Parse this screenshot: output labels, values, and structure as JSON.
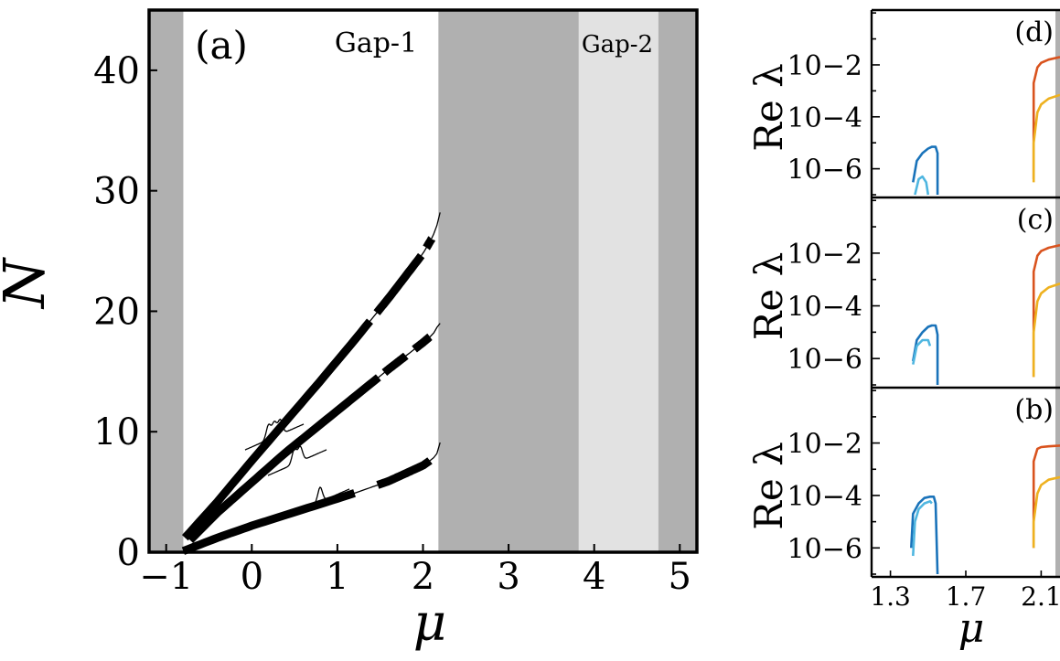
{
  "chart_data": [
    {
      "type": "line",
      "panel_label": "(a)",
      "xlabel": "μ",
      "ylabel": "N",
      "xlim": [
        -1.2,
        5.2
      ],
      "ylim": [
        0,
        45
      ],
      "xticks": [
        -1,
        0,
        1,
        2,
        3,
        4,
        5
      ],
      "xtick_labels": [
        "−1",
        "0",
        "1",
        "2",
        "3",
        "4",
        "5"
      ],
      "yticks": [
        0,
        10,
        20,
        30,
        40
      ],
      "ytick_labels": [
        "0",
        "10",
        "20",
        "30",
        "40"
      ],
      "grid": false,
      "bands": [
        {
          "x0": -1.2,
          "x1": -0.8,
          "color": "#b0b0b0"
        },
        {
          "x0": 2.18,
          "x1": 3.82,
          "color": "#b0b0b0"
        },
        {
          "x0": 3.82,
          "x1": 4.75,
          "color": "#e2e2e2"
        },
        {
          "x0": 4.75,
          "x1": 5.2,
          "color": "#b0b0b0"
        }
      ],
      "annotations": [
        {
          "text": "Gap-1",
          "x": 1.45,
          "y": 41.5
        },
        {
          "text": "Gap-2",
          "x": 4.27,
          "y": 41.5
        }
      ],
      "series": [
        {
          "x": [
            -0.78,
            -0.4,
            0,
            0.4,
            0.8,
            1.2,
            1.6,
            2.0,
            2.1,
            2.15,
            2.19,
            2.2
          ],
          "y": [
            1.2,
            4.2,
            7.6,
            10.9,
            14.2,
            17.6,
            21.1,
            24.8,
            26.0,
            26.8,
            27.8,
            28.2
          ],
          "thick_segments": [
            [
              -0.78,
              1.38
            ],
            [
              1.46,
              1.98
            ],
            [
              2.04,
              2.1
            ]
          ]
        },
        {
          "x": [
            -0.72,
            -0.4,
            0,
            0.4,
            0.8,
            1.2,
            1.6,
            2.0,
            2.1,
            2.15,
            2.19,
            2.2
          ],
          "y": [
            1.0,
            3.3,
            5.8,
            8.3,
            10.6,
            12.9,
            15.2,
            17.4,
            18.0,
            18.4,
            19.2,
            19.0
          ],
          "thick_segments": [
            [
              -0.72,
              1.48
            ],
            [
              1.55,
              1.8
            ],
            [
              1.9,
              2.08
            ]
          ]
        },
        {
          "x": [
            -0.8,
            -0.4,
            0,
            0.4,
            0.8,
            1.2,
            1.6,
            2.0,
            2.1,
            2.15,
            2.19,
            2.2
          ],
          "y": [
            0.1,
            1.2,
            2.2,
            3.1,
            4.0,
            4.9,
            5.9,
            7.2,
            7.7,
            8.0,
            8.6,
            9.1
          ],
          "thick_segments": [
            [
              -0.8,
              1.2
            ],
            [
              1.47,
              2.08
            ]
          ]
        }
      ]
    },
    {
      "type": "line",
      "panel_label": "(d)",
      "ylabel": "Re λ",
      "yscale": "log",
      "ylim": [
        1e-07,
        1
      ],
      "xlim": [
        1.2,
        2.2
      ],
      "ytick_labels": [
        "10−6",
        "10−4",
        "10−2"
      ],
      "series": [
        {
          "color": "#1a73ba",
          "x": [
            1.42,
            1.44,
            1.47,
            1.5,
            1.52,
            1.54,
            1.55,
            1.55
          ],
          "y": [
            3e-07,
            2e-06,
            4e-06,
            6e-06,
            7e-06,
            7e-06,
            4e-06,
            1e-07
          ]
        },
        {
          "color": "#4fb6e0",
          "x": [
            1.43,
            1.45,
            1.47,
            1.49,
            1.5
          ],
          "y": [
            1e-07,
            4e-07,
            5e-07,
            3e-07,
            1e-07
          ]
        },
        {
          "color": "#d9531e",
          "x": [
            2.06,
            2.06,
            2.08,
            2.1,
            2.14,
            2.2
          ],
          "y": [
            4e-07,
            0.002,
            0.008,
            0.012,
            0.016,
            0.02
          ]
        },
        {
          "color": "#eeb11f",
          "x": [
            2.06,
            2.06,
            2.08,
            2.1,
            2.14,
            2.2
          ],
          "y": [
            3e-07,
            1e-05,
            0.00015,
            0.0003,
            0.0005,
            0.0007
          ]
        }
      ]
    },
    {
      "type": "line",
      "panel_label": "(c)",
      "ylabel": "Re λ",
      "yscale": "log",
      "ylim": [
        1e-07,
        1
      ],
      "xlim": [
        1.2,
        2.2
      ],
      "ytick_labels": [
        "10−6",
        "10−4",
        "10−2"
      ],
      "series": [
        {
          "color": "#1a73ba",
          "x": [
            1.42,
            1.44,
            1.47,
            1.5,
            1.52,
            1.54,
            1.55,
            1.55
          ],
          "y": [
            8e-07,
            5e-06,
            1e-05,
            1.6e-05,
            1.8e-05,
            1.8e-05,
            8e-06,
            1e-07
          ]
        },
        {
          "color": "#4fb6e0",
          "x": [
            1.42,
            1.44,
            1.47,
            1.5,
            1.51
          ],
          "y": [
            6e-07,
            3e-06,
            5e-06,
            5e-06,
            3e-06
          ]
        },
        {
          "color": "#d9531e",
          "x": [
            2.06,
            2.06,
            2.08,
            2.1,
            2.14,
            2.2
          ],
          "y": [
            2e-07,
            0.002,
            0.008,
            0.012,
            0.016,
            0.02
          ]
        },
        {
          "color": "#eeb11f",
          "x": [
            2.06,
            2.06,
            2.08,
            2.1,
            2.14,
            2.2
          ],
          "y": [
            2e-07,
            1e-05,
            0.00015,
            0.0003,
            0.0005,
            0.0007
          ]
        }
      ]
    },
    {
      "type": "line",
      "panel_label": "(b)",
      "ylabel": "Re λ",
      "xlabel": "μ",
      "yscale": "log",
      "ylim": [
        1e-07,
        1
      ],
      "xlim": [
        1.2,
        2.2
      ],
      "xticks": [
        1.3,
        1.7,
        2.1
      ],
      "xtick_labels": [
        "1.3",
        "1.7",
        "2.1"
      ],
      "ytick_labels": [
        "10−6",
        "10−4",
        "10−2"
      ],
      "series": [
        {
          "color": "#1a73ba",
          "x": [
            1.41,
            1.42,
            1.45,
            1.48,
            1.51,
            1.53,
            1.54,
            1.55
          ],
          "y": [
            1e-06,
            2e-05,
            5e-05,
            8e-05,
            9e-05,
            9e-05,
            5e-05,
            1e-07
          ]
        },
        {
          "color": "#4fb6e0",
          "x": [
            1.42,
            1.43,
            1.45,
            1.48,
            1.51,
            1.52
          ],
          "y": [
            5e-07,
            1e-05,
            3e-05,
            5e-05,
            6e-05,
            5e-05
          ]
        },
        {
          "color": "#d9531e",
          "x": [
            2.06,
            2.06,
            2.08,
            2.1,
            2.14,
            2.2
          ],
          "y": [
            1e-06,
            0.002,
            0.006,
            0.007,
            0.0075,
            0.008
          ]
        },
        {
          "color": "#eeb11f",
          "x": [
            2.06,
            2.06,
            2.08,
            2.1,
            2.14,
            2.2
          ],
          "y": [
            1e-06,
            1e-05,
            0.00012,
            0.00025,
            0.0004,
            0.0005
          ]
        }
      ]
    }
  ]
}
